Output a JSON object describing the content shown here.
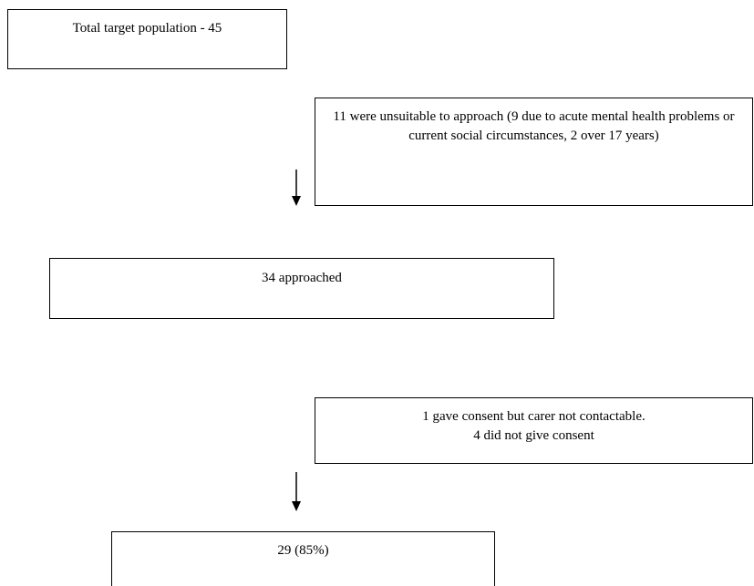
{
  "boxes": {
    "total": "Total target population - 45",
    "unsuitable": "11 were unsuitable to approach (9 due to acute mental health problems or current social circumstances, 2 over 17 years)",
    "approached": "34 approached",
    "consent_line1": "1 gave consent but carer not contactable.",
    "consent_line2": "4 did not give consent",
    "final": "29 (85%)"
  }
}
